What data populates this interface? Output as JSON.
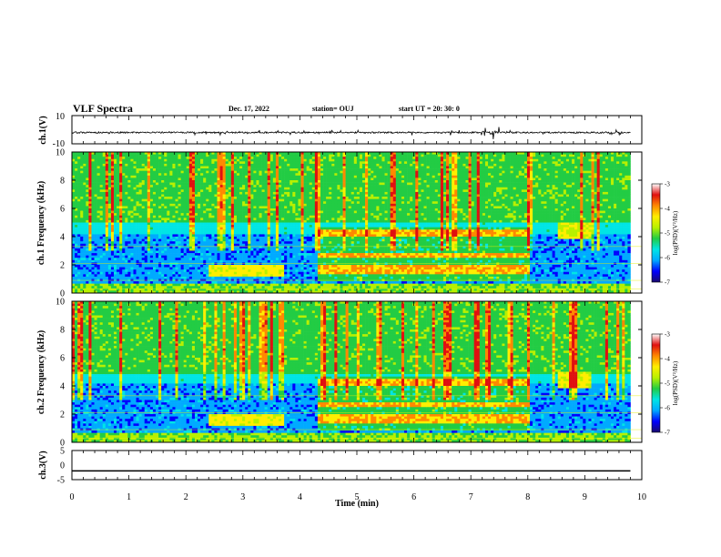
{
  "header": {
    "title": "VLF Spectra",
    "date": "Dec. 17, 2022",
    "station": "station= OUJ",
    "start": "start  UT  =   20: 30:  0"
  },
  "chart_data": [
    {
      "type": "line",
      "panel": "ch1-waveform",
      "ylabel": "ch.1(V)",
      "ylim": [
        -10,
        10
      ],
      "yticks": [
        "10",
        "-10"
      ],
      "baseline": -2,
      "series": []
    },
    {
      "type": "heatmap",
      "panel": "ch1-spectrogram",
      "ylabel": "ch.1  Frequency  (kHz)",
      "ylim": [
        0,
        10
      ],
      "yticks": [
        "0",
        "2",
        "4",
        "6",
        "8",
        "10"
      ],
      "colorbar": {
        "label": "log(PSD)(V²/Hz)",
        "ticks": [
          "-3",
          "-4",
          "-5",
          "-6",
          "-7"
        ],
        "range": [
          -7,
          -3
        ]
      }
    },
    {
      "type": "heatmap",
      "panel": "ch2-spectrogram",
      "ylabel": "ch.2  Frequency  (kHz)",
      "ylim": [
        0,
        10
      ],
      "yticks": [
        "0",
        "2",
        "4",
        "6",
        "8",
        "10"
      ],
      "colorbar": {
        "label": "log(PSD)(V²/Hz)",
        "ticks": [
          "-3",
          "-4",
          "-5",
          "-6",
          "-7"
        ],
        "range": [
          -7,
          -3
        ]
      }
    },
    {
      "type": "line",
      "panel": "ch3-waveform",
      "ylabel": "ch.3(V)",
      "ylim": [
        -5,
        5
      ],
      "yticks": [
        "5",
        "0",
        "-5"
      ],
      "series": [
        {
          "x": [
            0,
            9.8
          ],
          "values": [
            -2,
            -2
          ]
        }
      ]
    }
  ],
  "xaxis": {
    "label": "Time  (min)",
    "ticks": [
      "0",
      "1",
      "2",
      "3",
      "4",
      "5",
      "6",
      "7",
      "8",
      "9",
      "10"
    ],
    "xlim": [
      0,
      10
    ]
  },
  "colors": {
    "colormap": [
      "#1a0a6e",
      "#0000ff",
      "#00aaff",
      "#00e5e5",
      "#22cc44",
      "#b8f000",
      "#ffee00",
      "#ff8800",
      "#e01010",
      "#ffffff"
    ]
  }
}
